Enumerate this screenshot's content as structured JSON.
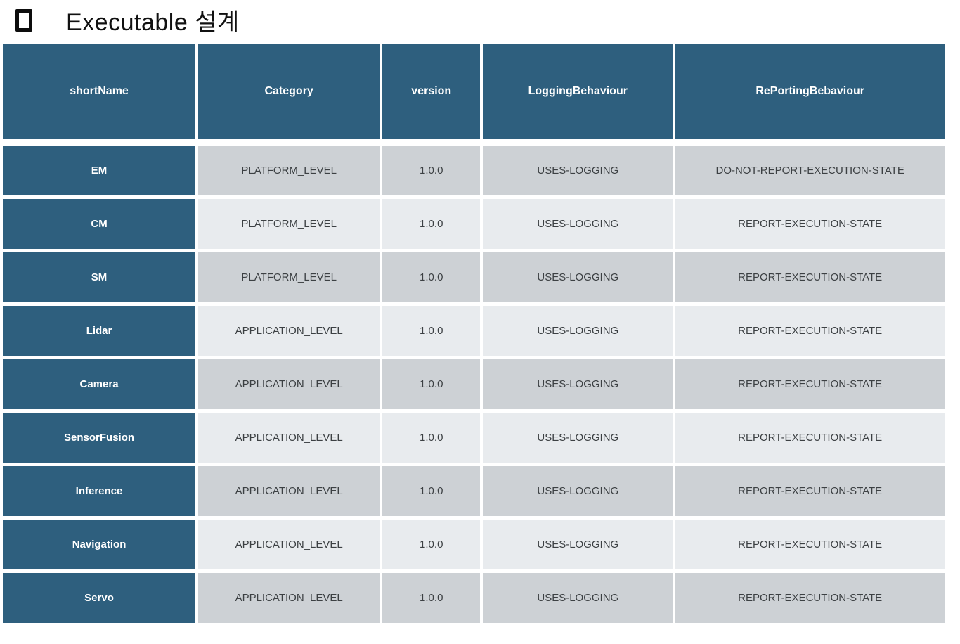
{
  "title": {
    "bullet_icon": "hollow-square",
    "text": "Executable 설계"
  },
  "table": {
    "headers": [
      "shortName",
      "Category",
      "version",
      "LoggingBehaviour",
      "RePortingBebaviour"
    ],
    "column_widths_pct": [
      20.7,
      19.5,
      10.5,
      20.4,
      28.9
    ],
    "rows": [
      {
        "cells": [
          "EM",
          "PLATFORM_LEVEL",
          "1.0.0",
          "USES-LOGGING",
          "DO-NOT-REPORT-EXECUTION-STATE"
        ]
      },
      {
        "cells": [
          "CM",
          "PLATFORM_LEVEL",
          "1.0.0",
          "USES-LOGGING",
          "REPORT-EXECUTION-STATE"
        ]
      },
      {
        "cells": [
          "SM",
          "PLATFORM_LEVEL",
          "1.0.0",
          "USES-LOGGING",
          "REPORT-EXECUTION-STATE"
        ]
      },
      {
        "cells": [
          "Lidar",
          "APPLICATION_LEVEL",
          "1.0.0",
          "USES-LOGGING",
          "REPORT-EXECUTION-STATE"
        ]
      },
      {
        "cells": [
          "Camera",
          "APPLICATION_LEVEL",
          "1.0.0",
          "USES-LOGGING",
          "REPORT-EXECUTION-STATE"
        ]
      },
      {
        "cells": [
          "SensorFusion",
          "APPLICATION_LEVEL",
          "1.0.0",
          "USES-LOGGING",
          "REPORT-EXECUTION-STATE"
        ]
      },
      {
        "cells": [
          "Inference",
          "APPLICATION_LEVEL",
          "1.0.0",
          "USES-LOGGING",
          "REPORT-EXECUTION-STATE"
        ]
      },
      {
        "cells": [
          "Navigation",
          "APPLICATION_LEVEL",
          "1.0.0",
          "USES-LOGGING",
          "REPORT-EXECUTION-STATE"
        ]
      },
      {
        "cells": [
          "Servo",
          "APPLICATION_LEVEL",
          "1.0.0",
          "USES-LOGGING",
          "REPORT-EXECUTION-STATE"
        ]
      }
    ]
  },
  "colors": {
    "header_bg": "#2E5F7E",
    "header_text": "#FFFFFF",
    "row_dark_bg": "#CDD1D5",
    "row_light_bg": "#E8EBEE",
    "body_text": "#3C4043"
  }
}
